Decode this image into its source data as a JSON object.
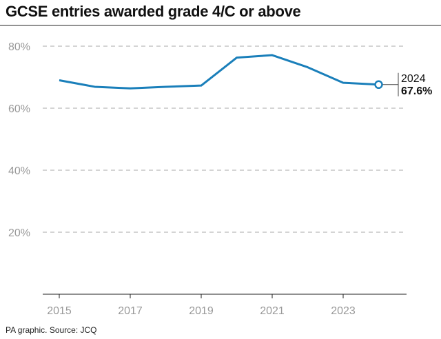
{
  "title": "GCSE entries awarded grade 4/C or above",
  "source": "PA graphic. Source: JCQ",
  "chart_data": {
    "type": "line",
    "title": "GCSE entries awarded grade 4/C or above",
    "x": [
      2015,
      2016,
      2017,
      2018,
      2019,
      2020,
      2021,
      2022,
      2023,
      2024
    ],
    "series": [
      {
        "values": [
          69.0,
          66.9,
          66.4,
          66.9,
          67.3,
          76.3,
          77.1,
          73.2,
          68.2,
          67.6
        ],
        "color": "#1a7fba"
      }
    ],
    "ylim": [
      0,
      80
    ],
    "yticks": [
      20,
      40,
      60,
      80
    ],
    "ytick_labels": [
      "20%",
      "40%",
      "60%",
      "80%"
    ],
    "xticks": [
      2015,
      2017,
      2019,
      2021,
      2023
    ],
    "xtick_labels": [
      "2015",
      "2017",
      "2019",
      "2021",
      "2023"
    ],
    "grid": "horizontal dashed",
    "annotation": {
      "year": "2024",
      "value": "67.6%"
    }
  }
}
